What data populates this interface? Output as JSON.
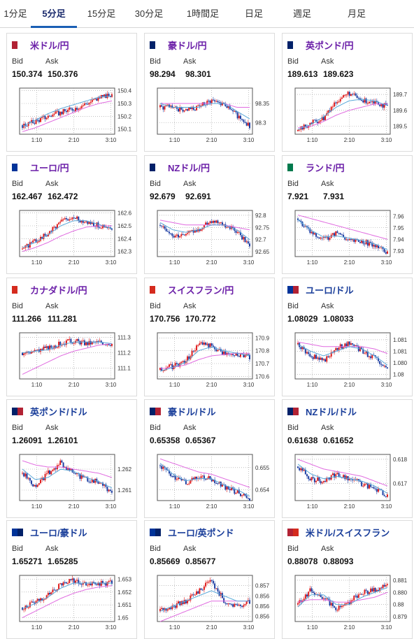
{
  "tabs": [
    {
      "label": "1分足",
      "active": false
    },
    {
      "label": "5分足",
      "active": true
    },
    {
      "label": "15分足",
      "active": false
    },
    {
      "label": "30分足",
      "active": false
    },
    {
      "label": "1時間足",
      "active": false
    },
    {
      "label": "日足",
      "active": false
    },
    {
      "label": "週足",
      "active": false
    },
    {
      "label": "月足",
      "active": false
    }
  ],
  "colors": {
    "up": "#e01e1e",
    "down": "#1f3fa3",
    "ma_short": "#5aa8d8",
    "ma_long": "#e06be0"
  },
  "labels": {
    "bid": "Bid",
    "ask": "Ask"
  },
  "pairs": [
    {
      "name": "米ドル/円",
      "flags": [
        [
          "#b22234",
          "#3c3b6e"
        ],
        [
          "#ffffff",
          "#ffffff"
        ]
      ],
      "bid": "150.374",
      "ask": "150.376",
      "x_ticks": [
        "1:10",
        "2:10",
        "3:10"
      ],
      "y_ticks": [
        "150.4",
        "150.3",
        "150.2",
        "150.1"
      ],
      "y_ticks_values": [
        150.4,
        150.3,
        150.2,
        150.1
      ],
      "ylim": [
        150.06,
        150.42
      ],
      "trend": [
        150.13,
        150.16,
        150.2,
        150.23,
        150.26,
        150.3,
        150.34,
        150.37
      ],
      "ma_short": [
        150.12,
        150.17,
        150.22,
        150.26,
        150.29,
        150.32,
        150.35,
        150.36
      ],
      "ma_long": [
        150.08,
        150.11,
        150.15,
        150.19,
        150.23,
        150.27,
        150.3,
        150.32
      ],
      "name_color": "purple"
    },
    {
      "name": "豪ドル/円",
      "flags": [
        [
          "#012169",
          "#012169"
        ],
        [
          "#ffffff",
          "#ffffff"
        ]
      ],
      "bid": "98.294",
      "ask": "98.301",
      "x_ticks": [
        "1:10",
        "2:10",
        "3:10"
      ],
      "y_ticks": [
        "98.35",
        "98.3"
      ],
      "y_ticks_values": [
        98.35,
        98.3
      ],
      "ylim": [
        98.27,
        98.39
      ],
      "trend": [
        98.34,
        98.34,
        98.33,
        98.34,
        98.36,
        98.35,
        98.32,
        98.29
      ],
      "ma_short": [
        98.35,
        98.34,
        98.34,
        98.34,
        98.35,
        98.35,
        98.33,
        98.31
      ],
      "ma_long": [
        98.35,
        98.35,
        98.35,
        98.35,
        98.35,
        98.35,
        98.34,
        98.34
      ],
      "name_color": "purple"
    },
    {
      "name": "英ポンド/円",
      "flags": [
        [
          "#012169",
          "#c8102e"
        ],
        [
          "#ffffff",
          "#ffffff"
        ]
      ],
      "bid": "189.613",
      "ask": "189.623",
      "x_ticks": [
        "1:10",
        "2:10",
        "3:10"
      ],
      "y_ticks": [
        "189.7",
        "189.6",
        "189.5"
      ],
      "y_ticks_values": [
        189.7,
        189.6,
        189.5
      ],
      "ylim": [
        189.45,
        189.74
      ],
      "trend": [
        189.47,
        189.52,
        189.55,
        189.66,
        189.71,
        189.66,
        189.66,
        189.62
      ],
      "ma_short": [
        189.48,
        189.51,
        189.56,
        189.62,
        189.66,
        189.67,
        189.66,
        189.63
      ],
      "ma_long": [
        189.49,
        189.5,
        189.53,
        189.57,
        189.6,
        189.62,
        189.64,
        189.64
      ],
      "name_color": "purple"
    },
    {
      "name": "ユーロ/円",
      "flags": [
        [
          "#003399",
          "#003399"
        ],
        [
          "#ffffff",
          "#ffffff"
        ]
      ],
      "bid": "162.467",
      "ask": "162.472",
      "x_ticks": [
        "1:10",
        "2:10",
        "3:10"
      ],
      "y_ticks": [
        "162.6",
        "162.5",
        "162.4",
        "162.3"
      ],
      "y_ticks_values": [
        162.6,
        162.5,
        162.4,
        162.3
      ],
      "ylim": [
        162.26,
        162.62
      ],
      "trend": [
        162.32,
        162.38,
        162.44,
        162.54,
        162.56,
        162.53,
        162.5,
        162.47
      ],
      "ma_short": [
        162.33,
        162.37,
        162.43,
        162.5,
        162.54,
        162.54,
        162.51,
        162.48
      ],
      "ma_long": [
        162.3,
        162.33,
        162.37,
        162.42,
        162.46,
        162.49,
        162.5,
        162.5
      ],
      "name_color": "purple"
    },
    {
      "name": "NZドル/円",
      "flags": [
        [
          "#012169",
          "#012169"
        ],
        [
          "#ffffff",
          "#ffffff"
        ]
      ],
      "bid": "92.679",
      "ask": "92.691",
      "x_ticks": [
        "1:10",
        "2:10",
        "3:10"
      ],
      "y_ticks": [
        "92.8",
        "92.75",
        "92.7",
        "92.65"
      ],
      "y_ticks_values": [
        92.8,
        92.75,
        92.7,
        92.65
      ],
      "ylim": [
        92.63,
        92.82
      ],
      "trend": [
        92.76,
        92.72,
        92.72,
        92.74,
        92.78,
        92.76,
        92.73,
        92.68
      ],
      "ma_short": [
        92.77,
        92.74,
        92.73,
        92.74,
        92.76,
        92.76,
        92.74,
        92.7
      ],
      "ma_long": [
        92.78,
        92.77,
        92.76,
        92.76,
        92.76,
        92.76,
        92.75,
        92.74
      ],
      "name_color": "purple"
    },
    {
      "name": "ランド/円",
      "flags": [
        [
          "#007a4d",
          "#de3831"
        ],
        [
          "#ffffff",
          "#ffffff"
        ]
      ],
      "bid": "7.921",
      "ask": "7.931",
      "x_ticks": [
        "1:10",
        "2:10",
        "3:10"
      ],
      "y_ticks": [
        "7.96",
        "7.95",
        "7.94",
        "7.93"
      ],
      "y_ticks_values": [
        7.96,
        7.95,
        7.94,
        7.93
      ],
      "ylim": [
        7.925,
        7.965
      ],
      "trend": [
        7.958,
        7.945,
        7.94,
        7.945,
        7.94,
        7.938,
        7.935,
        7.928
      ],
      "ma_short": [
        7.957,
        7.948,
        7.942,
        7.943,
        7.941,
        7.939,
        7.936,
        7.931
      ],
      "ma_long": [
        7.961,
        7.958,
        7.955,
        7.952,
        7.949,
        7.946,
        7.943,
        7.94
      ],
      "name_color": "purple"
    },
    {
      "name": "カナダドル/円",
      "flags": [
        [
          "#d52b1e",
          "#d52b1e"
        ],
        [
          "#ffffff",
          "#ffffff"
        ]
      ],
      "bid": "111.266",
      "ask": "111.281",
      "x_ticks": [
        "1:10",
        "2:10",
        "3:10"
      ],
      "y_ticks": [
        "111.3",
        "111.2",
        "111.1"
      ],
      "y_ticks_values": [
        111.3,
        111.2,
        111.1
      ],
      "ylim": [
        111.03,
        111.33
      ],
      "trend": [
        111.2,
        111.21,
        111.23,
        111.26,
        111.28,
        111.26,
        111.27,
        111.26
      ],
      "ma_short": [
        111.2,
        111.21,
        111.22,
        111.25,
        111.27,
        111.27,
        111.27,
        111.26
      ],
      "ma_long": [
        111.06,
        111.1,
        111.14,
        111.18,
        111.21,
        111.23,
        111.25,
        111.26
      ],
      "name_color": "purple"
    },
    {
      "name": "スイスフラン/円",
      "flags": [
        [
          "#d52b1e",
          "#d52b1e"
        ],
        [
          "#ffffff",
          "#ffffff"
        ]
      ],
      "bid": "170.756",
      "ask": "170.772",
      "x_ticks": [
        "1:10",
        "2:10",
        "3:10"
      ],
      "y_ticks": [
        "170.9",
        "170.8",
        "170.7",
        "170.6"
      ],
      "y_ticks_values": [
        170.9,
        170.8,
        170.7,
        170.6
      ],
      "ylim": [
        170.58,
        170.94
      ],
      "trend": [
        170.65,
        170.68,
        170.72,
        170.85,
        170.84,
        170.78,
        170.77,
        170.75
      ],
      "ma_short": [
        170.64,
        170.67,
        170.71,
        170.8,
        170.83,
        170.8,
        170.78,
        170.76
      ],
      "ma_long": [
        170.66,
        170.67,
        170.69,
        170.73,
        170.76,
        170.77,
        170.78,
        170.78
      ],
      "name_color": "purple"
    },
    {
      "name": "ユーロ/ドル",
      "flags": [
        [
          "#003399",
          "#003399"
        ],
        [
          "#b22234",
          "#3c3b6e"
        ]
      ],
      "bid": "1.08029",
      "ask": "1.08033",
      "x_ticks": [
        "1:10",
        "2:10",
        "3:10"
      ],
      "y_ticks": [
        "1.0815",
        "1.081",
        "1.0805",
        "1.08"
      ],
      "y_ticks_values": [
        1.0815,
        1.081,
        1.0805,
        1.08
      ],
      "ylim": [
        1.0798,
        1.0818
      ],
      "trend": [
        1.0813,
        1.0808,
        1.0806,
        1.0811,
        1.0814,
        1.081,
        1.0807,
        1.0802
      ],
      "ma_short": [
        1.0813,
        1.081,
        1.0808,
        1.081,
        1.0812,
        1.0811,
        1.0808,
        1.0804
      ],
      "ma_long": [
        1.0814,
        1.0813,
        1.0812,
        1.0812,
        1.0812,
        1.0812,
        1.0811,
        1.0809
      ],
      "name_color": "blue"
    },
    {
      "name": "英ポンド/ドル",
      "flags": [
        [
          "#012169",
          "#c8102e"
        ],
        [
          "#b22234",
          "#3c3b6e"
        ]
      ],
      "bid": "1.26091",
      "ask": "1.26101",
      "x_ticks": [
        "1:10",
        "2:10",
        "3:10"
      ],
      "y_ticks": [
        "1.262",
        "1.261"
      ],
      "y_ticks_values": [
        1.262,
        1.261
      ],
      "ylim": [
        1.2605,
        1.2627
      ],
      "trend": [
        1.2618,
        1.2612,
        1.2618,
        1.2623,
        1.2618,
        1.2615,
        1.2614,
        1.2609
      ],
      "ma_short": [
        1.262,
        1.2615,
        1.2616,
        1.262,
        1.2619,
        1.2616,
        1.2614,
        1.2611
      ],
      "ma_long": [
        1.2624,
        1.2622,
        1.2621,
        1.2621,
        1.262,
        1.2619,
        1.2618,
        1.2616
      ],
      "name_color": "blue"
    },
    {
      "name": "豪ドル/ドル",
      "flags": [
        [
          "#012169",
          "#012169"
        ],
        [
          "#b22234",
          "#3c3b6e"
        ]
      ],
      "bid": "0.65358",
      "ask": "0.65367",
      "x_ticks": [
        "1:10",
        "2:10",
        "3:10"
      ],
      "y_ticks": [
        "0.655",
        "0.654"
      ],
      "y_ticks_values": [
        0.655,
        0.654
      ],
      "ylim": [
        0.6535,
        0.6556
      ],
      "trend": [
        0.6551,
        0.6545,
        0.6543,
        0.6546,
        0.6545,
        0.6541,
        0.6539,
        0.6536
      ],
      "ma_short": [
        0.6552,
        0.6547,
        0.6544,
        0.6545,
        0.6545,
        0.6542,
        0.654,
        0.6537
      ],
      "ma_long": [
        0.6554,
        0.6552,
        0.655,
        0.6548,
        0.6547,
        0.6545,
        0.6543,
        0.6541
      ],
      "name_color": "blue"
    },
    {
      "name": "NZドル/ドル",
      "flags": [
        [
          "#012169",
          "#012169"
        ],
        [
          "#b22234",
          "#3c3b6e"
        ]
      ],
      "bid": "0.61638",
      "ask": "0.61652",
      "x_ticks": [
        "1:10",
        "2:10",
        "3:10"
      ],
      "y_ticks": [
        "0.618",
        "0.617"
      ],
      "y_ticks_values": [
        0.618,
        0.617
      ],
      "ylim": [
        0.6163,
        0.6182
      ],
      "trend": [
        0.6177,
        0.6172,
        0.6171,
        0.6174,
        0.6172,
        0.617,
        0.6168,
        0.6165
      ],
      "ma_short": [
        0.6178,
        0.6174,
        0.6172,
        0.6173,
        0.6172,
        0.6171,
        0.6169,
        0.6166
      ],
      "ma_long": [
        0.618,
        0.6178,
        0.6176,
        0.6175,
        0.6174,
        0.6173,
        0.6171,
        0.6169
      ],
      "name_color": "blue"
    },
    {
      "name": "ユーロ/豪ドル",
      "flags": [
        [
          "#003399",
          "#003399"
        ],
        [
          "#012169",
          "#012169"
        ]
      ],
      "bid": "1.65271",
      "ask": "1.65285",
      "x_ticks": [
        "1:10",
        "2:10",
        "3:10"
      ],
      "y_ticks": [
        "1.653",
        "1.652",
        "1.651",
        "1.65"
      ],
      "y_ticks_values": [
        1.653,
        1.652,
        1.651,
        1.65
      ],
      "ylim": [
        1.6497,
        1.6533
      ],
      "trend": [
        1.6508,
        1.6512,
        1.6518,
        1.6526,
        1.6529,
        1.6527,
        1.6527,
        1.6527
      ],
      "ma_short": [
        1.6507,
        1.6511,
        1.6516,
        1.6523,
        1.6527,
        1.6527,
        1.6527,
        1.6527
      ],
      "ma_long": [
        1.65,
        1.6505,
        1.651,
        1.6515,
        1.6519,
        1.6522,
        1.6524,
        1.6525
      ],
      "name_color": "blue"
    },
    {
      "name": "ユーロ/英ポンド",
      "flags": [
        [
          "#003399",
          "#003399"
        ],
        [
          "#012169",
          "#c8102e"
        ]
      ],
      "bid": "0.85669",
      "ask": "0.85677",
      "x_ticks": [
        "1:10",
        "2:10",
        "3:10"
      ],
      "y_ticks": [
        "0.857",
        "0.8568",
        "0.8566",
        "0.8564"
      ],
      "y_ticks_values": [
        0.857,
        0.8568,
        0.8566,
        0.8564
      ],
      "ylim": [
        0.8563,
        0.8572
      ],
      "trend": [
        0.8565,
        0.8566,
        0.8567,
        0.8569,
        0.8571,
        0.8567,
        0.8566,
        0.8567
      ],
      "ma_short": [
        0.8565,
        0.8566,
        0.8567,
        0.8568,
        0.8569,
        0.8568,
        0.8567,
        0.8567
      ],
      "ma_long": [
        0.8563,
        0.8564,
        0.8565,
        0.8566,
        0.8567,
        0.8567,
        0.8567,
        0.8567
      ],
      "name_color": "blue"
    },
    {
      "name": "米ドル/スイスフラン",
      "flags": [
        [
          "#b22234",
          "#3c3b6e"
        ],
        [
          "#d52b1e",
          "#d52b1e"
        ]
      ],
      "bid": "0.88078",
      "ask": "0.88093",
      "x_ticks": [
        "1:10",
        "2:10",
        "3:10"
      ],
      "y_ticks": [
        "0.881",
        "0.8805",
        "0.88",
        "0.8795"
      ],
      "y_ticks_values": [
        0.881,
        0.8805,
        0.88,
        0.8795
      ],
      "ylim": [
        0.8793,
        0.8812
      ],
      "trend": [
        0.88,
        0.8806,
        0.8803,
        0.8798,
        0.8801,
        0.8805,
        0.8806,
        0.8808
      ],
      "ma_short": [
        0.8799,
        0.8804,
        0.8804,
        0.88,
        0.88,
        0.8803,
        0.8805,
        0.8807
      ],
      "ma_long": [
        0.8801,
        0.8802,
        0.8802,
        0.8801,
        0.8801,
        0.8802,
        0.8803,
        0.8805
      ],
      "name_color": "blue"
    }
  ]
}
